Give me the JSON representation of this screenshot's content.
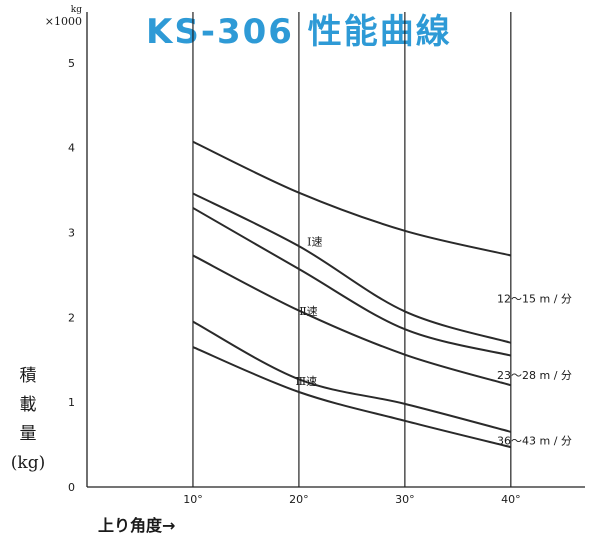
{
  "chart_data": {
    "type": "line",
    "title": "KS-306 性能曲線",
    "xlabel": "上り角度→",
    "ylabel": [
      "積",
      "載",
      "量",
      "(kg)"
    ],
    "y_unit": [
      "kg",
      "×1000"
    ],
    "x": [
      10,
      20,
      30,
      40
    ],
    "x_tick_labels": [
      "10°",
      "20°",
      "30°",
      "40°"
    ],
    "y_ticks": [
      0,
      1,
      2,
      3,
      4,
      5
    ],
    "xlim": [
      0,
      47
    ],
    "ylim": [
      0,
      5.6
    ],
    "grid": "vertical",
    "series": [
      {
        "values": [
          4.07,
          3.47,
          3.02,
          2.73
        ]
      },
      {
        "values": [
          3.46,
          2.84,
          2.07,
          1.7
        ]
      },
      {
        "values": [
          3.29,
          2.57,
          1.86,
          1.55
        ]
      },
      {
        "values": [
          2.73,
          2.08,
          1.56,
          1.2
        ]
      },
      {
        "values": [
          1.95,
          1.27,
          0.98,
          0.65
        ]
      },
      {
        "values": [
          1.65,
          1.12,
          0.78,
          0.47
        ]
      }
    ],
    "annotations": [
      {
        "text": "Ⅰ速",
        "x": 21.5,
        "y": 2.85
      },
      {
        "text": "Ⅱ速",
        "x": 20.9,
        "y": 2.03
      },
      {
        "text": "Ⅲ速",
        "x": 20.7,
        "y": 1.2
      }
    ],
    "right_labels": [
      {
        "text": "12～15 m / 分",
        "y": 2.22
      },
      {
        "text": "23～28 m / 分",
        "y": 1.32
      },
      {
        "text": "36～43 m / 分",
        "y": 0.55
      }
    ]
  }
}
